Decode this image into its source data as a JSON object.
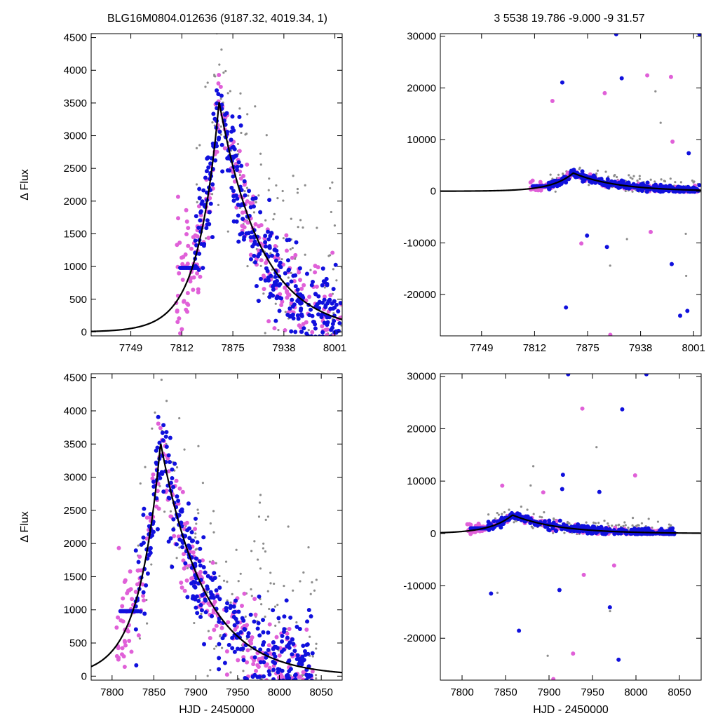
{
  "header": {
    "left": "BLG16M0804.012636 (9187.32, 4019.34,    1)",
    "right": "3   5538   19.786   -9.000   -9   31.57"
  },
  "colors": {
    "model": "#000000",
    "blue": "#1010dd",
    "pink": "#e060d8",
    "gray": "#8c8c8c"
  },
  "chart_data": [
    {
      "id": "top-left",
      "type": "scatter",
      "title": "",
      "xlabel": "",
      "ylabel": "Δ Flux",
      "xlim": [
        7700,
        8010
      ],
      "ylim": [
        -60,
        4560
      ],
      "xticks": [
        "7749",
        "7812",
        "7875",
        "7938",
        "8001"
      ],
      "xtick_values": [
        7749,
        7812,
        7875,
        7938,
        8001
      ],
      "yticks": [
        "0",
        "500",
        "1000",
        "1500",
        "2000",
        "2500",
        "3000",
        "3500",
        "4000",
        "4500"
      ],
      "ytick_values": [
        0,
        500,
        1000,
        1500,
        2000,
        2500,
        3000,
        3500,
        4000,
        4500
      ],
      "grid": false,
      "model": {
        "t0": 7858,
        "peak": 3520,
        "tau_rise": 26,
        "tau_fall": 52
      },
      "baseline_segment": {
        "x": [
          7810,
          7832
        ],
        "y": 980
      },
      "series": [
        {
          "color": "blue",
          "n": 330,
          "x_range": [
            7828,
            8010
          ]
        },
        {
          "color": "pink",
          "n": 240,
          "x_range": [
            7805,
            8010
          ]
        },
        {
          "color": "gray",
          "n": 160,
          "x_range": [
            7830,
            8010
          ]
        }
      ]
    },
    {
      "id": "top-right",
      "type": "scatter",
      "title": "",
      "xlabel": "",
      "ylabel": "",
      "xlim": [
        7700,
        8010
      ],
      "ylim": [
        -28000,
        30500
      ],
      "xticks": [
        "7749",
        "7812",
        "7875",
        "7938",
        "8001"
      ],
      "xtick_values": [
        7749,
        7812,
        7875,
        7938,
        8001
      ],
      "yticks": [
        "-20000",
        "-10000",
        "0",
        "10000",
        "20000",
        "30000"
      ],
      "ytick_values": [
        -20000,
        -10000,
        0,
        10000,
        20000,
        30000
      ],
      "grid": false,
      "model": {
        "t0": 7858,
        "peak": 3520,
        "tau_rise": 26,
        "tau_fall": 52
      },
      "baseline_segment": {
        "x": [
          7810,
          7832
        ],
        "y": 980
      },
      "series": [
        {
          "color": "blue",
          "n": 330,
          "x_range": [
            7828,
            8010
          ]
        },
        {
          "color": "pink",
          "n": 240,
          "x_range": [
            7805,
            8010
          ]
        },
        {
          "color": "gray",
          "n": 160,
          "x_range": [
            7830,
            8010
          ]
        }
      ],
      "outliers": [
        [
          7909,
          30400
        ],
        [
          8008,
          30400
        ],
        [
          7902,
          -27800
        ],
        [
          7985,
          -24100
        ],
        [
          7898,
          -10800
        ],
        [
          7950,
          -7900
        ],
        [
          7975,
          -14100
        ]
      ]
    },
    {
      "id": "bottom-left",
      "type": "scatter",
      "title": "",
      "xlabel": "HJD - 2450000",
      "ylabel": "Δ Flux",
      "xlim": [
        7775,
        8075
      ],
      "ylim": [
        -60,
        4560
      ],
      "xticks": [
        "7800",
        "7850",
        "7900",
        "7950",
        "8000",
        "8050"
      ],
      "xtick_values": [
        7800,
        7850,
        7900,
        7950,
        8000,
        8050
      ],
      "yticks": [
        "0",
        "500",
        "1000",
        "1500",
        "2000",
        "2500",
        "3000",
        "3500",
        "4000",
        "4500"
      ],
      "ytick_values": [
        0,
        500,
        1000,
        1500,
        2000,
        2500,
        3000,
        3500,
        4000,
        4500
      ],
      "grid": false,
      "model": {
        "t0": 7858,
        "peak": 3520,
        "tau_rise": 26,
        "tau_fall": 52
      },
      "baseline_segment": {
        "x": [
          7810,
          7832
        ],
        "y": 980
      },
      "series": [
        {
          "color": "blue",
          "n": 350,
          "x_range": [
            7828,
            8040
          ]
        },
        {
          "color": "pink",
          "n": 250,
          "x_range": [
            7805,
            8040
          ]
        },
        {
          "color": "gray",
          "n": 170,
          "x_range": [
            7830,
            8045
          ]
        }
      ]
    },
    {
      "id": "bottom-right",
      "type": "scatter",
      "title": "",
      "xlabel": "HJD - 2450000",
      "ylabel": "",
      "xlim": [
        7775,
        8075
      ],
      "ylim": [
        -28000,
        30500
      ],
      "xticks": [
        "7800",
        "7850",
        "7900",
        "7950",
        "8000",
        "8050"
      ],
      "xtick_values": [
        7800,
        7850,
        7900,
        7950,
        8000,
        8050
      ],
      "yticks": [
        "-20000",
        "-10000",
        "0",
        "10000",
        "20000",
        "30000"
      ],
      "ytick_values": [
        -20000,
        -10000,
        0,
        10000,
        20000,
        30000
      ],
      "grid": false,
      "model": {
        "t0": 7858,
        "peak": 3520,
        "tau_rise": 26,
        "tau_fall": 52
      },
      "baseline_segment": {
        "x": [
          7810,
          7832
        ],
        "y": 980
      },
      "series": [
        {
          "color": "blue",
          "n": 350,
          "x_range": [
            7828,
            8045
          ]
        },
        {
          "color": "pink",
          "n": 250,
          "x_range": [
            7805,
            8040
          ]
        },
        {
          "color": "gray",
          "n": 170,
          "x_range": [
            7830,
            8045
          ]
        }
      ],
      "outliers": [
        [
          7922,
          30400
        ],
        [
          8012,
          30400
        ],
        [
          7905,
          -27800
        ],
        [
          7980,
          -24100
        ],
        [
          7912,
          -10800
        ],
        [
          7940,
          -7900
        ],
        [
          7970,
          -14100
        ]
      ]
    }
  ]
}
